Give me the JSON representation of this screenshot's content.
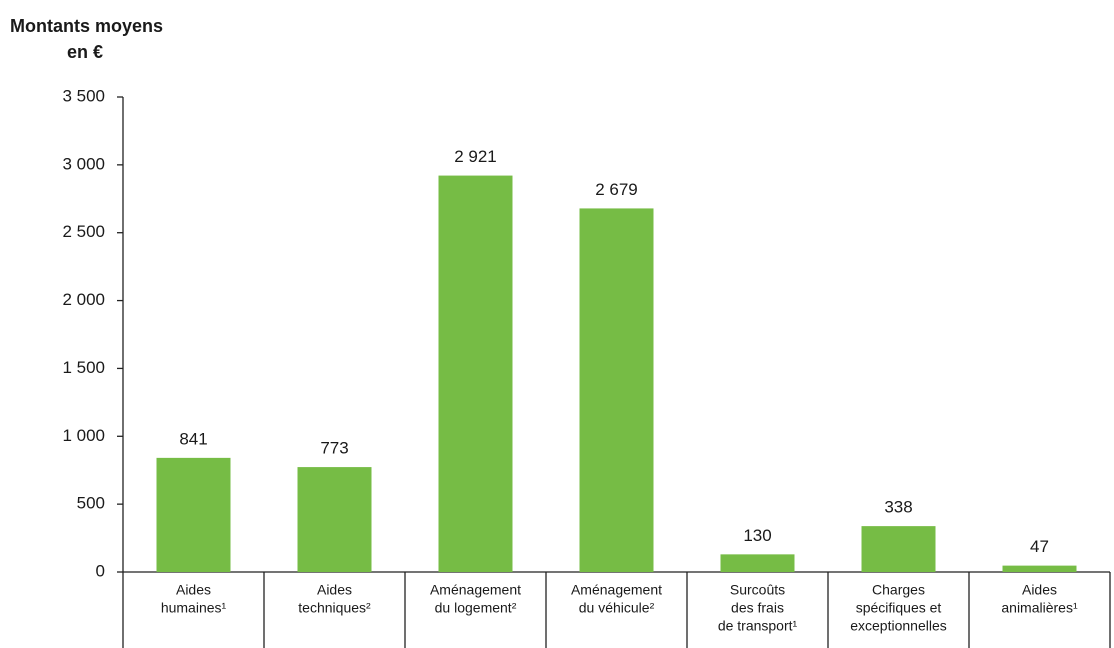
{
  "chart_data": {
    "type": "bar",
    "ylabel": [
      "Montants moyens",
      "en €"
    ],
    "categories": [
      [
        "Aides",
        "humaines¹"
      ],
      [
        "Aides",
        "techniques²"
      ],
      [
        "Aménagement",
        "du logement²"
      ],
      [
        "Aménagement",
        "du véhicule²"
      ],
      [
        "Surcoûts",
        "des frais",
        "de transport¹"
      ],
      [
        "Charges",
        "spécifiques et",
        "exceptionnelles"
      ],
      [
        "Aides",
        "animalières¹"
      ]
    ],
    "values": [
      841,
      773,
      2921,
      2679,
      130,
      338,
      47
    ],
    "value_labels": [
      "841",
      "773",
      "2 921",
      "2 679",
      "130",
      "338",
      "47"
    ],
    "color": "#76bc45",
    "ylim": [
      0,
      3500
    ],
    "yticks": [
      0,
      500,
      {
        "value": 1000,
        "label": "1 000"
      },
      {
        "value": 1500,
        "label": "1 500"
      },
      {
        "value": 2000,
        "label": "2 000"
      },
      {
        "value": 2500,
        "label": "2 500"
      },
      {
        "value": 3000,
        "label": "3 000"
      },
      {
        "value": 3500,
        "label": "3 500"
      }
    ],
    "grid": false
  }
}
